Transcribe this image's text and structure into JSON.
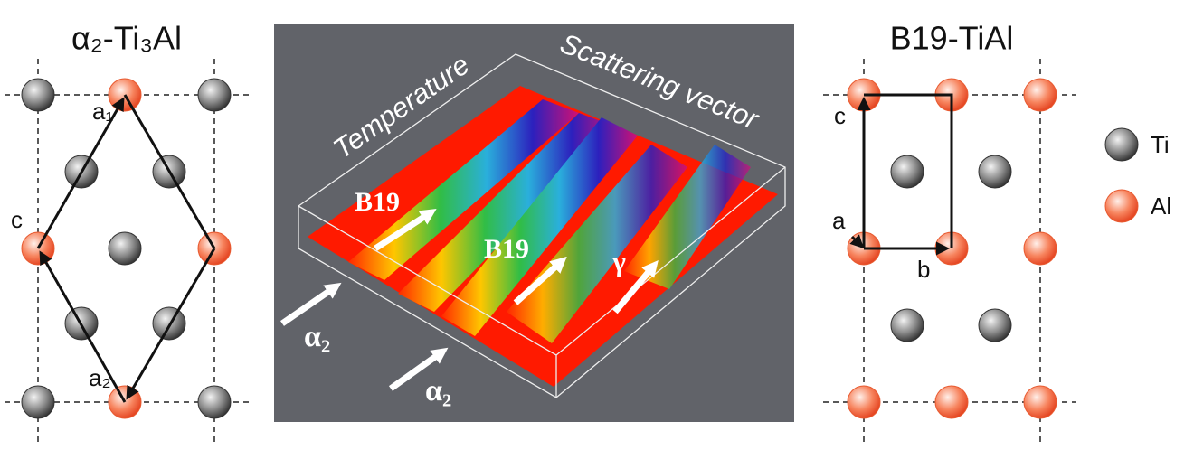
{
  "left_panel": {
    "title": "α₂-Ti₃Al",
    "labels": [
      "a₁",
      "c",
      "a₂"
    ]
  },
  "center_panel": {
    "axis_labels": [
      "Temperature",
      "Scattering vector"
    ],
    "phase_labels": [
      "B19",
      "B19",
      "γ",
      "α₂",
      "α₂"
    ]
  },
  "right_panel": {
    "title": "B19-TiAl",
    "labels": [
      "c",
      "a",
      "b"
    ]
  },
  "legend": {
    "items": [
      "Ti",
      "Al"
    ]
  }
}
